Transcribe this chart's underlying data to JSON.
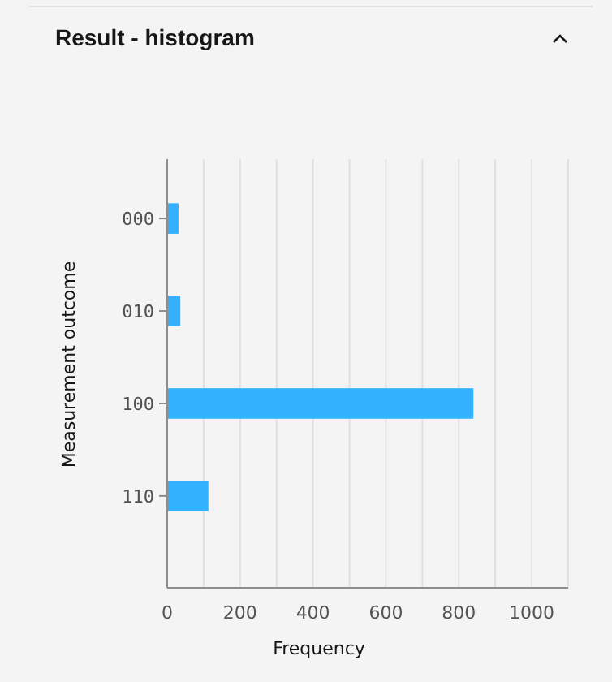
{
  "chart_data": {
    "type": "bar",
    "orientation": "horizontal",
    "title": "Result - histogram",
    "xlabel": "Frequency",
    "ylabel": "Measurement outcome",
    "categories": [
      "000",
      "010",
      "100",
      "110"
    ],
    "values": [
      31,
      36,
      840,
      113
    ],
    "color": "#33b1ff",
    "xlim": [
      0,
      1100
    ],
    "xticks": [
      0,
      {
        "value": 100,
        "label": null
      },
      200,
      {
        "value": 300,
        "label": null
      },
      400,
      {
        "value": 500,
        "label": null
      },
      600,
      {
        "value": 700,
        "label": null
      },
      800,
      {
        "value": 900,
        "label": null
      },
      1000,
      {
        "value": 1100,
        "label": null
      }
    ],
    "grid": "x"
  }
}
